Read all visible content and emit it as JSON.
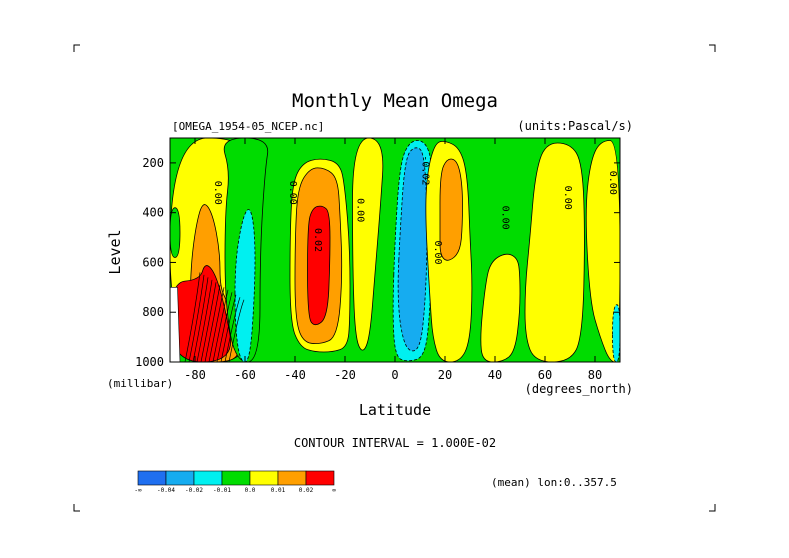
{
  "chart_data": {
    "type": "heatmap",
    "title": "Monthly Mean Omega",
    "subtitle_left": "[OMEGA_1954-05_NCEP.nc]",
    "subtitle_right": "(units:Pascal/s)",
    "xlabel": "Latitude",
    "ylabel": "Level",
    "xunit_label": "(degrees_north)",
    "yunit_label": "(millibar)",
    "xlim": [
      -90,
      90
    ],
    "ylim": [
      1000,
      100
    ],
    "xticks": [
      -80,
      -60,
      -40,
      -20,
      0,
      20,
      40,
      60,
      80
    ],
    "xtick_labels": [
      "-80",
      "-60",
      "-40",
      "-20",
      "0",
      "20",
      "40",
      "60",
      "80"
    ],
    "yticks": [
      200,
      400,
      600,
      800,
      1000
    ],
    "ytick_labels": [
      "200",
      "400",
      "600",
      "800",
      "1000"
    ],
    "contour_interval_text": "CONTOUR INTERVAL = 1.000E-02",
    "footnote": "(mean) lon:0..357.5",
    "levels": [
      {
        "name": "lt-0.04",
        "color": "#1f6ff0"
      },
      {
        "name": "-0.04..-0.02",
        "color": "#16acf0"
      },
      {
        "name": "-0.02..-0.01",
        "color": "#00f0f0"
      },
      {
        "name": "-0.01..0.0",
        "color": "#00dc00"
      },
      {
        "name": "0.0..0.01",
        "color": "#ffff00"
      },
      {
        "name": "0.01..0.02",
        "color": "#ff9f00"
      },
      {
        "name": "gt0.02",
        "color": "#ff0000"
      }
    ],
    "colorbar_labels": [
      "-∞",
      "-0.04",
      "-0.02",
      "-0.01",
      "0.0",
      "0.01",
      "0.02",
      "∞"
    ],
    "contour_labels": [
      {
        "text": "0.00",
        "lat": -72,
        "lev": 320
      },
      {
        "text": "0.00",
        "lat": -42,
        "lev": 320
      },
      {
        "text": "0.00",
        "lat": -15,
        "lev": 390
      },
      {
        "text": "0.02",
        "lat": -32,
        "lev": 510
      },
      {
        "text": "-0.02",
        "lat": 11,
        "lev": 230
      },
      {
        "text": "0.00",
        "lat": 16,
        "lev": 560
      },
      {
        "text": "0.00",
        "lat": 43,
        "lev": 420
      },
      {
        "text": "0.00",
        "lat": 68,
        "lev": 340
      },
      {
        "text": "0.00",
        "lat": 86,
        "lev": 280
      }
    ],
    "regions": [
      {
        "band": "0.0..0.01",
        "poly": [
          [
            -90,
            100
          ],
          [
            -60,
            100
          ],
          [
            -60,
            250
          ],
          [
            -52,
            1000
          ],
          [
            -90,
            1000
          ]
        ]
      },
      {
        "band": "-0.01..0.0",
        "poly": [
          [
            -90,
            380
          ],
          [
            -86,
            380
          ],
          [
            -86,
            580
          ],
          [
            -90,
            580
          ]
        ]
      },
      {
        "band": "0.01..0.02",
        "poly": [
          [
            -82,
            660
          ],
          [
            -80,
            470
          ],
          [
            -77,
            350
          ],
          [
            -73,
            400
          ],
          [
            -70,
            560
          ],
          [
            -70,
            700
          ],
          [
            -67,
            760
          ],
          [
            -64,
            900
          ],
          [
            -62,
            1000
          ],
          [
            -82,
            1000
          ]
        ]
      },
      {
        "band": "gt0.02",
        "poly": [
          [
            -90,
            680
          ],
          [
            -78,
            670
          ],
          [
            -76,
            600
          ],
          [
            -72,
            640
          ],
          [
            -68,
            780
          ],
          [
            -64,
            1000
          ],
          [
            -90,
            1000
          ]
        ]
      },
      {
        "band": "-0.01..0.0",
        "poly": [
          [
            -70,
            100
          ],
          [
            -50,
            100
          ],
          [
            -52,
            230
          ],
          [
            -54,
            560
          ],
          [
            -54,
            1000
          ],
          [
            -64,
            1000
          ],
          [
            -68,
            760
          ],
          [
            -68,
            400
          ],
          [
            -66,
            230
          ]
        ]
      },
      {
        "band": "-0.02..-0.01",
        "poly": [
          [
            -64,
            600
          ],
          [
            -61,
            420
          ],
          [
            -58,
            370
          ],
          [
            -56,
            480
          ],
          [
            -56,
            700
          ],
          [
            -58,
            1000
          ],
          [
            -62,
            1000
          ],
          [
            -64,
            850
          ]
        ]
      },
      {
        "band": "0.0..0.01",
        "poly": [
          [
            -42,
            480
          ],
          [
            -41,
            280
          ],
          [
            -37,
            200
          ],
          [
            -30,
            180
          ],
          [
            -22,
            200
          ],
          [
            -20,
            300
          ],
          [
            -18,
            550
          ],
          [
            -18,
            830
          ],
          [
            -19,
            940
          ],
          [
            -25,
            960
          ],
          [
            -32,
            960
          ],
          [
            -38,
            940
          ],
          [
            -42,
            840
          ]
        ]
      },
      {
        "band": "0.01..0.02",
        "poly": [
          [
            -40,
            520
          ],
          [
            -39,
            300
          ],
          [
            -34,
            220
          ],
          [
            -28,
            220
          ],
          [
            -23,
            260
          ],
          [
            -22,
            400
          ],
          [
            -21,
            660
          ],
          [
            -23,
            900
          ],
          [
            -30,
            930
          ],
          [
            -37,
            920
          ],
          [
            -40,
            820
          ]
        ]
      },
      {
        "band": "gt0.02",
        "poly": [
          [
            -35,
            450
          ],
          [
            -33,
            380
          ],
          [
            -29,
            370
          ],
          [
            -26,
            400
          ],
          [
            -26,
            600
          ],
          [
            -27,
            820
          ],
          [
            -32,
            860
          ],
          [
            -35,
            820
          ]
        ]
      },
      {
        "band": "-0.02..-0.01",
        "poly": [
          [
            -13,
            420
          ],
          [
            -12,
            280
          ],
          [
            -10,
            260
          ],
          [
            -9,
            330
          ],
          [
            -9,
            470
          ],
          [
            -11,
            540
          ],
          [
            -13,
            500
          ]
        ]
      },
      {
        "band": "0.0..0.01",
        "poly": [
          [
            -17,
            100
          ],
          [
            -4,
            100
          ],
          [
            -6,
            400
          ],
          [
            -8,
            640
          ],
          [
            -10,
            900
          ],
          [
            -13,
            970
          ],
          [
            -16,
            900
          ],
          [
            -17,
            600
          ]
        ]
      },
      {
        "band": "-0.02..-0.01",
        "poly": [
          [
            0,
            500
          ],
          [
            2,
            200
          ],
          [
            6,
            110
          ],
          [
            12,
            110
          ],
          [
            15,
            200
          ],
          [
            15,
            500
          ],
          [
            14,
            800
          ],
          [
            12,
            980
          ],
          [
            5,
            1000
          ],
          [
            0,
            980
          ],
          [
            -1,
            800
          ]
        ]
      },
      {
        "band": "-0.04..-0.02",
        "poly": [
          [
            2,
            480
          ],
          [
            4,
            180
          ],
          [
            8,
            130
          ],
          [
            12,
            160
          ],
          [
            13,
            500
          ],
          [
            12,
            780
          ],
          [
            10,
            950
          ],
          [
            5,
            960
          ],
          [
            2,
            860
          ],
          [
            1,
            700
          ]
        ]
      },
      {
        "band": "0.0..0.01",
        "poly": [
          [
            12,
            400
          ],
          [
            13,
            230
          ],
          [
            16,
            120
          ],
          [
            20,
            110
          ],
          [
            26,
            140
          ],
          [
            29,
            250
          ],
          [
            30,
            500
          ],
          [
            31,
            700
          ],
          [
            30,
            920
          ],
          [
            26,
            1000
          ],
          [
            18,
            1000
          ],
          [
            15,
            900
          ],
          [
            14,
            750
          ]
        ]
      },
      {
        "band": "0.01..0.02",
        "poly": [
          [
            18,
            480
          ],
          [
            18,
            240
          ],
          [
            21,
            180
          ],
          [
            25,
            190
          ],
          [
            27,
            290
          ],
          [
            27,
            450
          ],
          [
            26,
            560
          ],
          [
            21,
            600
          ],
          [
            18,
            570
          ]
        ]
      },
      {
        "band": "0.0..0.01",
        "poly": [
          [
            34,
            900
          ],
          [
            36,
            700
          ],
          [
            38,
            600
          ],
          [
            44,
            560
          ],
          [
            49,
            580
          ],
          [
            50,
            650
          ],
          [
            50,
            800
          ],
          [
            48,
            960
          ],
          [
            43,
            1000
          ],
          [
            35,
            1000
          ]
        ]
      },
      {
        "band": "0.0..0.01",
        "poly": [
          [
            52,
            700
          ],
          [
            54,
            500
          ],
          [
            56,
            250
          ],
          [
            60,
            120
          ],
          [
            70,
            120
          ],
          [
            75,
            200
          ],
          [
            76,
            500
          ],
          [
            75,
            900
          ],
          [
            70,
            1000
          ],
          [
            56,
            1000
          ],
          [
            52,
            900
          ]
        ]
      },
      {
        "band": "0.0..0.01",
        "poly": [
          [
            76,
            400
          ],
          [
            78,
            200
          ],
          [
            82,
            110
          ],
          [
            90,
            110
          ],
          [
            90,
            1000
          ],
          [
            86,
            1000
          ],
          [
            82,
            900
          ],
          [
            78,
            760
          ]
        ]
      },
      {
        "band": "-0.02..-0.01",
        "poly": [
          [
            87,
            780
          ],
          [
            90,
            760
          ],
          [
            90,
            1000
          ],
          [
            87,
            1000
          ]
        ]
      }
    ]
  }
}
